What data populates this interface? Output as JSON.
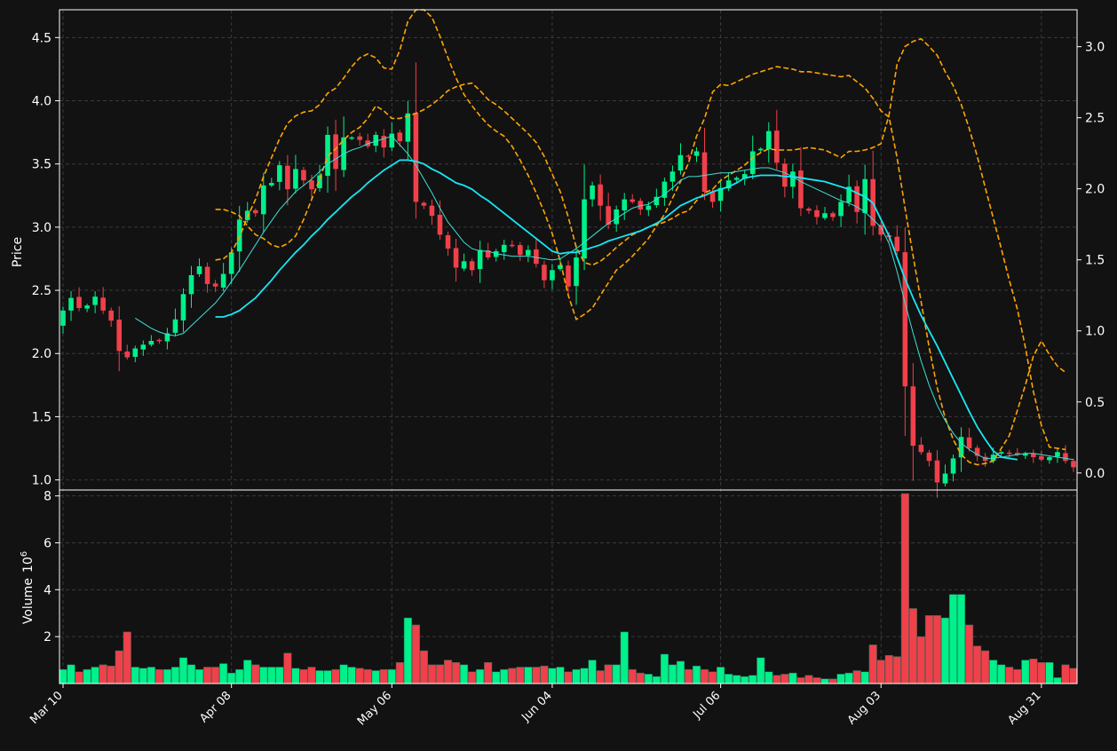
{
  "colors": {
    "background": "#121212",
    "grid": "#3a3a3a",
    "up": "#00f08a",
    "down": "#f0404a",
    "ma_fast": "#3de0d6",
    "ma_slow": "#18e6f5",
    "bands": "#ffa500",
    "axis": "#ffffff"
  },
  "chart_data": {
    "type": "candlestick",
    "x_ticks": [
      "Mar 10",
      "Apr 08",
      "May 06",
      "Jun 04",
      "Jul 06",
      "Aug 03",
      "Aug 31"
    ],
    "x_tick_index": [
      0,
      21,
      41,
      61,
      82,
      102,
      122
    ],
    "price_axis": {
      "label": "Price",
      "range": [
        0.92,
        4.72
      ],
      "ticks": [
        "1.0",
        "1.5",
        "2.0",
        "2.5",
        "3.0",
        "3.5",
        "4.0",
        "4.5"
      ]
    },
    "right_axis": {
      "range": [
        -0.12,
        3.26
      ],
      "ticks": [
        "0.0",
        "0.5",
        "1.0",
        "1.5",
        "2.0",
        "2.5",
        "3.0"
      ]
    },
    "volume_axis": {
      "label": "Volume",
      "multiplier": "10",
      "exponent": "6",
      "range": [
        0,
        8.1
      ],
      "ticks": [
        "2",
        "4",
        "6",
        "8"
      ]
    },
    "closes": [
      2.34,
      2.44,
      2.36,
      2.38,
      2.45,
      2.34,
      2.26,
      2.02,
      1.97,
      2.04,
      2.07,
      2.1,
      2.1,
      2.16,
      2.27,
      2.47,
      2.62,
      2.69,
      2.55,
      2.53,
      2.63,
      2.8,
      3.06,
      3.13,
      3.11,
      3.33,
      3.35,
      3.49,
      3.3,
      3.46,
      3.37,
      3.3,
      3.41,
      3.73,
      3.46,
      3.71,
      3.71,
      3.69,
      3.64,
      3.73,
      3.63,
      3.74,
      3.68,
      3.9,
      3.2,
      3.17,
      3.09,
      2.94,
      2.83,
      2.68,
      2.73,
      2.66,
      2.82,
      2.76,
      2.81,
      2.86,
      2.85,
      2.78,
      2.82,
      2.71,
      2.58,
      2.66,
      2.7,
      2.53,
      2.76,
      3.22,
      3.33,
      3.17,
      3.02,
      3.14,
      3.22,
      3.2,
      3.14,
      3.17,
      3.24,
      3.36,
      3.44,
      3.57,
      3.56,
      3.6,
      3.28,
      3.2,
      3.31,
      3.37,
      3.39,
      3.42,
      3.6,
      3.62,
      3.76,
      3.51,
      3.32,
      3.44,
      3.15,
      3.13,
      3.08,
      3.11,
      3.08,
      3.2,
      3.32,
      3.12,
      3.38,
      3.01,
      2.94,
      2.92,
      2.81,
      1.74,
      1.27,
      1.22,
      1.15,
      0.98,
      1.05,
      1.17,
      1.34,
      1.25,
      1.19,
      1.15,
      1.2,
      1.22,
      1.21,
      1.2,
      1.21,
      1.18,
      1.16,
      1.18,
      1.22,
      1.15,
      1.1
    ],
    "volumes": [
      0.6,
      0.8,
      0.5,
      0.6,
      0.7,
      0.8,
      0.75,
      1.4,
      2.2,
      0.7,
      0.65,
      0.7,
      0.6,
      0.6,
      0.7,
      1.1,
      0.8,
      0.6,
      0.7,
      0.7,
      0.85,
      0.45,
      0.6,
      1.0,
      0.8,
      0.7,
      0.7,
      0.7,
      1.3,
      0.65,
      0.6,
      0.7,
      0.55,
      0.55,
      0.6,
      0.8,
      0.7,
      0.65,
      0.6,
      0.55,
      0.6,
      0.6,
      0.9,
      2.8,
      2.5,
      1.4,
      0.8,
      0.8,
      1.0,
      0.9,
      0.8,
      0.5,
      0.6,
      0.9,
      0.5,
      0.6,
      0.65,
      0.7,
      0.7,
      0.7,
      0.75,
      0.65,
      0.7,
      0.5,
      0.6,
      0.65,
      1.0,
      0.55,
      0.8,
      0.8,
      2.2,
      0.6,
      0.45,
      0.4,
      0.3,
      1.25,
      0.8,
      0.95,
      0.6,
      0.75,
      0.6,
      0.5,
      0.7,
      0.4,
      0.35,
      0.3,
      0.35,
      1.1,
      0.5,
      0.35,
      0.4,
      0.45,
      0.25,
      0.35,
      0.25,
      0.2,
      0.2,
      0.4,
      0.45,
      0.55,
      0.5,
      1.65,
      1.0,
      1.2,
      1.15,
      8.1,
      3.2,
      2.0,
      2.9,
      2.9,
      2.8,
      3.8,
      3.8,
      2.5,
      1.6,
      1.4,
      1.0,
      0.8,
      0.7,
      0.6,
      1.0,
      1.05,
      0.9,
      0.9,
      0.25,
      0.8,
      0.65
    ],
    "ma_fast": [
      null,
      null,
      null,
      null,
      null,
      null,
      null,
      null,
      null,
      2.28,
      2.24,
      2.2,
      2.17,
      2.15,
      2.14,
      2.16,
      2.22,
      2.28,
      2.34,
      2.4,
      2.48,
      2.57,
      2.66,
      2.76,
      2.86,
      2.96,
      3.05,
      3.14,
      3.21,
      3.28,
      3.33,
      3.38,
      3.44,
      3.5,
      3.54,
      3.58,
      3.61,
      3.63,
      3.66,
      3.68,
      3.7,
      3.72,
      3.65,
      3.58,
      3.49,
      3.38,
      3.27,
      3.15,
      3.04,
      2.96,
      2.88,
      2.83,
      2.81,
      2.81,
      2.79,
      2.78,
      2.77,
      2.77,
      2.77,
      2.76,
      2.75,
      2.74,
      2.75,
      2.79,
      2.83,
      2.88,
      2.93,
      2.98,
      3.03,
      3.07,
      3.11,
      3.15,
      3.17,
      3.18,
      3.22,
      3.26,
      3.31,
      3.37,
      3.4,
      3.4,
      3.41,
      3.42,
      3.43,
      3.43,
      3.44,
      3.45,
      3.46,
      3.47,
      3.47,
      3.45,
      3.43,
      3.4,
      3.36,
      3.33,
      3.3,
      3.27,
      3.24,
      3.21,
      3.19,
      3.16,
      3.12,
      3.06,
      3.0,
      2.87,
      2.65,
      2.4,
      2.16,
      1.94,
      1.75,
      1.59,
      1.47,
      1.37,
      1.29,
      1.24,
      1.2,
      1.17,
      1.17,
      1.18,
      1.19,
      1.2,
      1.21,
      1.21,
      1.2,
      1.19,
      1.18,
      1.17,
      1.16
    ],
    "ma_slow": [
      null,
      null,
      null,
      null,
      null,
      null,
      null,
      null,
      null,
      null,
      null,
      null,
      null,
      null,
      null,
      null,
      null,
      null,
      null,
      2.29,
      2.29,
      2.31,
      2.34,
      2.39,
      2.44,
      2.51,
      2.58,
      2.66,
      2.73,
      2.8,
      2.86,
      2.93,
      2.99,
      3.06,
      3.12,
      3.18,
      3.24,
      3.29,
      3.35,
      3.4,
      3.45,
      3.49,
      3.53,
      3.53,
      3.52,
      3.5,
      3.46,
      3.43,
      3.39,
      3.35,
      3.33,
      3.3,
      3.25,
      3.21,
      3.16,
      3.11,
      3.06,
      3.01,
      2.96,
      2.91,
      2.86,
      2.81,
      2.79,
      2.8,
      2.8,
      2.82,
      2.84,
      2.86,
      2.89,
      2.91,
      2.93,
      2.95,
      2.97,
      3.0,
      3.03,
      3.07,
      3.12,
      3.17,
      3.2,
      3.23,
      3.25,
      3.28,
      3.3,
      3.32,
      3.35,
      3.39,
      3.4,
      3.41,
      3.41,
      3.41,
      3.4,
      3.4,
      3.39,
      3.38,
      3.37,
      3.36,
      3.34,
      3.32,
      3.3,
      3.27,
      3.24,
      3.19,
      3.06,
      2.93,
      2.76,
      2.59,
      2.44,
      2.3,
      2.18,
      2.06,
      1.93,
      1.8,
      1.67,
      1.54,
      1.42,
      1.32,
      1.23,
      1.18,
      1.17,
      1.16
    ],
    "bands_upper": [
      null,
      null,
      null,
      null,
      null,
      null,
      null,
      null,
      null,
      null,
      null,
      null,
      null,
      null,
      null,
      null,
      null,
      null,
      null,
      2.74,
      2.75,
      2.8,
      2.92,
      3.08,
      3.22,
      3.4,
      3.55,
      3.7,
      3.82,
      3.88,
      3.91,
      3.92,
      3.97,
      4.06,
      4.1,
      4.18,
      4.27,
      4.34,
      4.37,
      4.34,
      4.26,
      4.25,
      4.4,
      4.63,
      4.72,
      4.72,
      4.66,
      4.51,
      4.34,
      4.18,
      4.05,
      3.96,
      3.88,
      3.81,
      3.76,
      3.72,
      3.64,
      3.53,
      3.41,
      3.27,
      3.12,
      2.95,
      2.73,
      2.46,
      2.27,
      2.31,
      2.36,
      2.46,
      2.56,
      2.66,
      2.71,
      2.77,
      2.84,
      2.91,
      3.01,
      3.1,
      3.23,
      3.36,
      3.51,
      3.72,
      3.86,
      4.07,
      4.13,
      4.12,
      4.15,
      4.18,
      4.21,
      4.23,
      4.25,
      4.27,
      4.26,
      4.25,
      4.23,
      4.23,
      4.22,
      4.21,
      4.2,
      4.19,
      4.2,
      4.15,
      4.1,
      4.02,
      3.92,
      3.87,
      3.55,
      3.15,
      2.77,
      2.41,
      2.05,
      1.73,
      1.49,
      1.32,
      1.2,
      1.14,
      1.12,
      1.13,
      1.15,
      1.25,
      1.35,
      1.55,
      1.75,
      1.98,
      2.1,
      1.99,
      1.9,
      1.85
    ],
    "bands_lower": [
      null,
      null,
      null,
      null,
      null,
      null,
      null,
      null,
      null,
      null,
      null,
      null,
      null,
      null,
      null,
      null,
      null,
      null,
      null,
      3.14,
      3.14,
      3.12,
      3.09,
      3.01,
      2.94,
      2.91,
      2.86,
      2.84,
      2.87,
      2.93,
      3.06,
      3.22,
      3.38,
      3.56,
      3.62,
      3.69,
      3.75,
      3.79,
      3.86,
      3.96,
      3.92,
      3.86,
      3.86,
      3.88,
      3.9,
      3.93,
      3.97,
      4.02,
      4.08,
      4.11,
      4.13,
      4.14,
      4.08,
      4.01,
      3.97,
      3.92,
      3.86,
      3.8,
      3.74,
      3.67,
      3.56,
      3.42,
      3.28,
      3.08,
      2.84,
      2.72,
      2.7,
      2.73,
      2.78,
      2.84,
      2.89,
      2.94,
      2.97,
      3.0,
      3.02,
      3.04,
      3.07,
      3.11,
      3.13,
      3.21,
      3.27,
      3.3,
      3.37,
      3.41,
      3.45,
      3.49,
      3.55,
      3.59,
      3.62,
      3.61,
      3.61,
      3.61,
      3.62,
      3.63,
      3.62,
      3.61,
      3.58,
      3.55,
      3.6,
      3.6,
      3.61,
      3.63,
      3.66,
      3.89,
      4.29,
      4.43,
      4.47,
      4.49,
      4.43,
      4.36,
      4.23,
      4.12,
      3.97,
      3.78,
      3.56,
      3.31,
      3.07,
      2.83,
      2.58,
      2.35,
      2.05,
      1.7,
      1.43,
      1.26,
      1.25,
      1.24
    ]
  }
}
